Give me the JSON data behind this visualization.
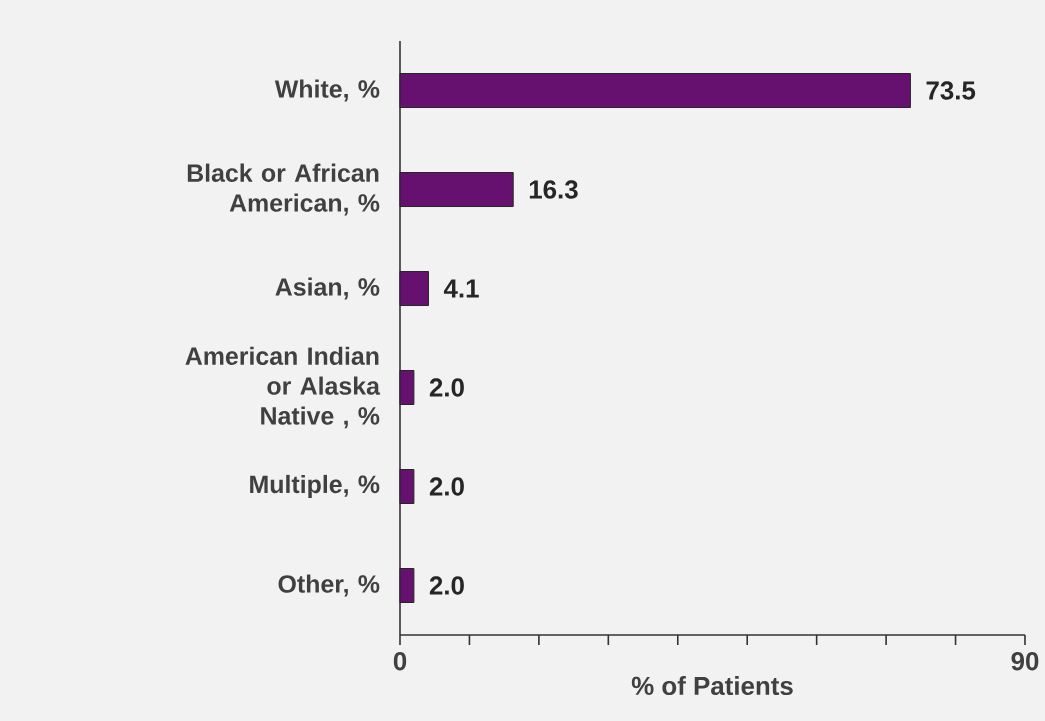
{
  "chart_data": {
    "type": "bar",
    "orientation": "horizontal",
    "categories": [
      "White, %",
      "Black or African American, %",
      "Asian, %",
      "American Indian or Alaska Native , %",
      "Multiple, %",
      "Other, %"
    ],
    "values": [
      73.5,
      16.3,
      4.1,
      2.0,
      2.0,
      2.0
    ],
    "color": "#661170",
    "xlim": [
      0,
      90
    ],
    "xticks": [
      0,
      {
        "value": 10,
        "label": null
      },
      {
        "value": 20,
        "label": null
      },
      {
        "value": 30,
        "label": null
      },
      {
        "value": 40,
        "label": null
      },
      {
        "value": 50,
        "label": null
      },
      {
        "value": 60,
        "label": null
      },
      {
        "value": 70,
        "label": null
      },
      {
        "value": 80,
        "label": null
      },
      90
    ],
    "xlabel": "% of Patients",
    "value_labels": [
      "73.5",
      "16.3",
      "4.1",
      "2.0",
      "2.0",
      "2.0"
    ]
  }
}
